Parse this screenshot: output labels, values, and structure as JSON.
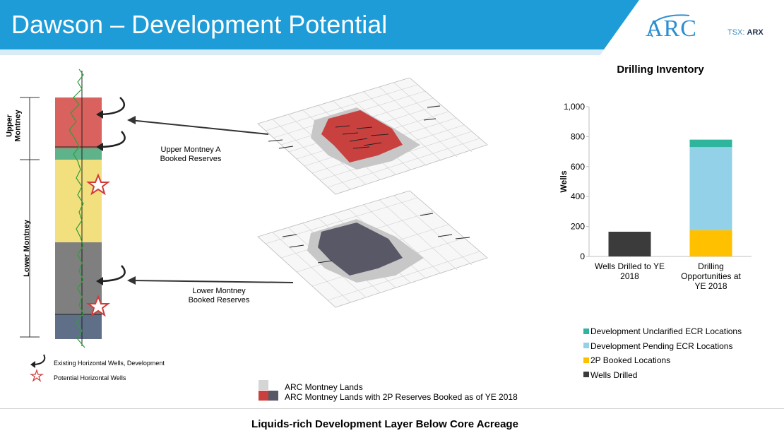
{
  "header": {
    "title": "Dawson – Development Potential",
    "logo_text": "ARC",
    "ticker_prefix": "TSX: ",
    "ticker_symbol": "ARX"
  },
  "log_panel": {
    "upper_label": "Upper\nMontney",
    "upper_label_line1": "Upper",
    "upper_label_line2": "Montney",
    "lower_label": "Lower Montney",
    "legend_existing": "Existing Horizontal Wells, Development",
    "legend_potential": "Potential Horizontal Wells",
    "colors": {
      "upper": "#d9625e",
      "transition": "#5fb38a",
      "lower_yellow": "#f2df7d",
      "lower_gray": "#7f7f7f",
      "base": "#5f6f87"
    }
  },
  "callouts": {
    "upper_line1": "Upper Montney A",
    "upper_line2": "Booked Reserves",
    "lower_line1": "Lower Montney",
    "lower_line2": "Booked Reserves"
  },
  "map_legend": {
    "lands": "ARC Montney Lands",
    "booked": "ARC Montney Lands with 2P Reserves Booked as of YE 2018"
  },
  "footer": "Liquids-rich Development Layer Below Core Acreage",
  "chart_data": {
    "type": "bar",
    "stacked": true,
    "title": "Drilling Inventory",
    "ylabel": "Wells",
    "xlabel": "",
    "ylim": [
      0,
      1000
    ],
    "yticks": [
      "0",
      "200",
      "400",
      "600",
      "800",
      "1,000"
    ],
    "categories": [
      "Wells Drilled to YE 2018",
      "Drilling Opportunities at YE 2018"
    ],
    "category_lines": [
      [
        "Wells Drilled to YE",
        "2018"
      ],
      [
        "Drilling",
        "Opportunities at",
        "YE 2018"
      ]
    ],
    "grid": false,
    "legend_position": "bottom",
    "series": [
      {
        "name": "Wells Drilled",
        "color": "#3b3b3b",
        "values": [
          165,
          0
        ]
      },
      {
        "name": "2P Booked Locations",
        "color": "#ffc000",
        "values": [
          0,
          175
        ]
      },
      {
        "name": "Development Pending ECR Locations",
        "color": "#92d1e8",
        "values": [
          0,
          555
        ]
      },
      {
        "name": "Development Unclarified ECR Locations",
        "color": "#2fb59e",
        "values": [
          0,
          50
        ]
      }
    ],
    "legend_order": [
      "Development Unclarified ECR Locations",
      "Development Pending ECR Locations",
      "2P Booked Locations",
      "Wells Drilled"
    ]
  }
}
